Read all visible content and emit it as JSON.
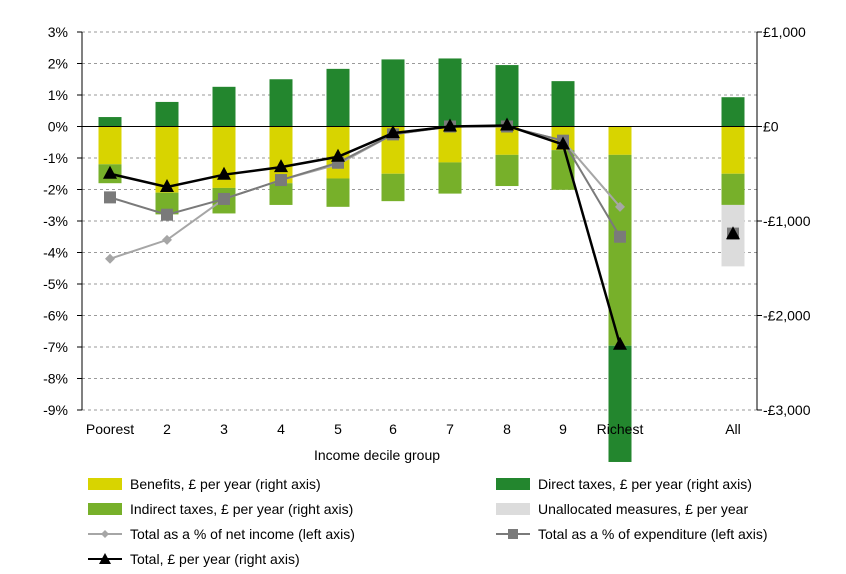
{
  "chart_data": {
    "type": "bar",
    "title": "",
    "xlabel": "Income decile group",
    "ylabel": "",
    "categories": [
      "Poorest",
      "2",
      "3",
      "4",
      "5",
      "6",
      "7",
      "8",
      "9",
      "Richest",
      "All"
    ],
    "left_axis": {
      "range": [
        -9,
        3
      ],
      "ticks": [
        "3%",
        "2%",
        "1%",
        "0%",
        "-1%",
        "-2%",
        "-3%",
        "-4%",
        "-5%",
        "-6%",
        "-7%",
        "-8%",
        "-9%"
      ]
    },
    "right_axis": {
      "range": [
        -3000,
        1000
      ],
      "ticks": [
        "£1,000",
        "£0",
        "-£1,000",
        "-£2,000",
        "-£3,000"
      ],
      "tick_values": [
        1000,
        0,
        -1000,
        -2000,
        -3000
      ]
    },
    "grid": "dashed horizontal at left-axis ticks",
    "series": [
      {
        "name": "Benefits, £ per year (right axis)",
        "kind": "bar",
        "axis": "right",
        "color": "#d8d400",
        "values": [
          -400,
          -700,
          -650,
          -600,
          -550,
          -500,
          -380,
          -300,
          -250,
          -300,
          -500
        ]
      },
      {
        "name": "Indirect taxes, £ per year (right axis)",
        "kind": "bar",
        "axis": "right",
        "color": "#77b02a",
        "values": [
          -200,
          -230,
          -270,
          -230,
          -300,
          -290,
          -330,
          -330,
          -420,
          -2020,
          -330
        ]
      },
      {
        "name": "Direct taxes, £ per year (right axis)",
        "kind": "bar",
        "axis": "right",
        "color": "#23862e",
        "values": [
          100,
          260,
          420,
          500,
          610,
          710,
          720,
          650,
          480,
          -1230,
          310
        ]
      },
      {
        "name": "Unallocated measures, £ per year",
        "kind": "bar",
        "axis": "right",
        "color": "#dcdcdc",
        "values": [
          0,
          0,
          0,
          0,
          0,
          0,
          0,
          0,
          0,
          0,
          -650
        ]
      },
      {
        "name": "Total as a % of net income (left axis)",
        "kind": "line",
        "axis": "left",
        "color": "#a6a6a6",
        "marker": "diamond",
        "values": [
          -4.2,
          -3.6,
          -2.3,
          -1.7,
          -1.2,
          -0.25,
          0.0,
          0.0,
          -0.45,
          -2.55,
          null
        ]
      },
      {
        "name": "Total as a % of expenditure (left axis)",
        "kind": "line",
        "axis": "left",
        "color": "#7a7a7a",
        "marker": "square",
        "values": [
          -2.25,
          -2.8,
          -2.3,
          -1.7,
          -1.15,
          -0.25,
          0.0,
          0.0,
          -0.45,
          -3.5,
          -3.4
        ]
      },
      {
        "name": "Total, £ per year (right axis)",
        "kind": "line",
        "axis": "right",
        "color": "#000000",
        "marker": "triangle",
        "values": [
          -500,
          -640,
          -510,
          -430,
          -320,
          -70,
          0,
          10,
          -190,
          -2310,
          -1140
        ]
      }
    ]
  },
  "legend": {
    "benefits": "Benefits, £ per year (right axis)",
    "direct": "Direct taxes, £ per year (right axis)",
    "indirect": "Indirect taxes, £ per year (right axis)",
    "unallocated": "Unallocated measures, £ per year",
    "pct_income": "Total as a % of net income (left axis)",
    "pct_expenditure": "Total as a % of expenditure (left axis)",
    "total": "Total, £ per year (right axis)"
  }
}
